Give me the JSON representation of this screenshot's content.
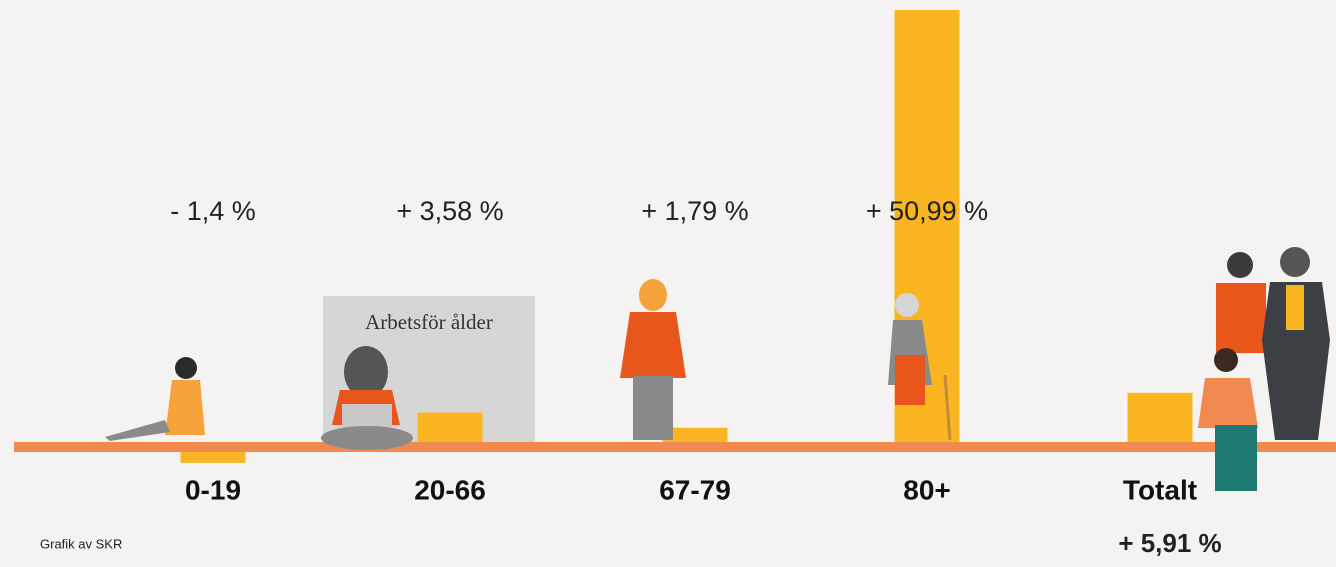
{
  "chart_data": {
    "type": "bar",
    "categories": [
      "0-19",
      "20-66",
      "67-79",
      "80+",
      "Totalt"
    ],
    "values": [
      -1.4,
      3.58,
      1.79,
      50.99,
      5.91
    ],
    "value_labels": [
      "- 1,4 %",
      "+ 3,58 %",
      "+ 1,79 %",
      "+ 50,99 %",
      "+ 5,91 %"
    ],
    "color": "#fbb520",
    "annotation": "Arbetsför ålder",
    "credit": "Grafik av SKR"
  }
}
